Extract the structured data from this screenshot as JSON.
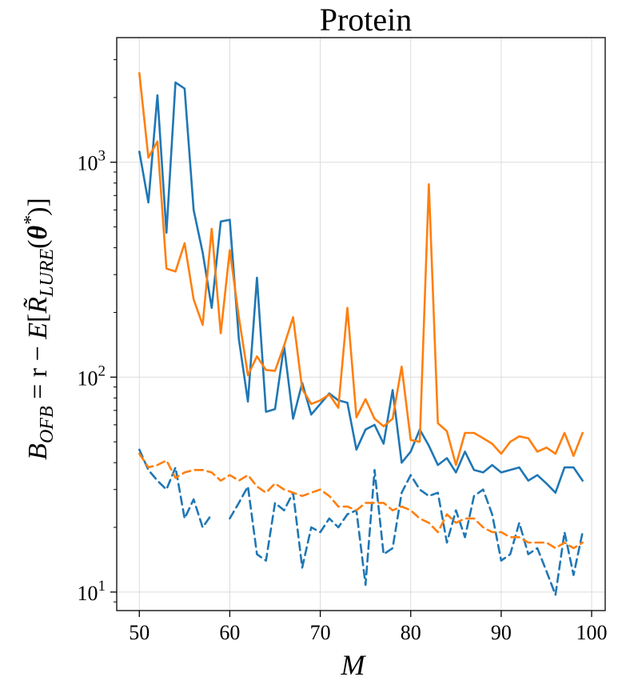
{
  "chart_data": {
    "type": "line",
    "title": "Protein",
    "xlabel": "M",
    "ylabel": "B_OFB = r − E[R̃_LURE(θ*)]",
    "ylabel_parts": {
      "b": "B",
      "b_sub": "OFB",
      "eq": " = r − ",
      "e": "E",
      "lbr": "[",
      "r": "R̃",
      "r_sub": "LURE",
      "lpar": "(",
      "theta": "θ",
      "star": "*",
      "rpar": ")",
      "rbr": "]"
    },
    "yscale": "log",
    "xlim": [
      47.5,
      101.5
    ],
    "ylim": [
      8.2,
      3800
    ],
    "xticks": [
      50,
      60,
      70,
      80,
      90,
      100
    ],
    "xtick_labels": [
      "50",
      "60",
      "70",
      "80",
      "90",
      "100"
    ],
    "yticks": [
      10,
      100,
      1000
    ],
    "ytick_labels": [
      {
        "base": "10",
        "exp": "1"
      },
      {
        "base": "10",
        "exp": "2"
      },
      {
        "base": "10",
        "exp": "3"
      }
    ],
    "grid": true,
    "colors": {
      "blue": "#1f77b4",
      "orange": "#ff7f0e"
    },
    "x": [
      50,
      51,
      52,
      53,
      54,
      55,
      56,
      57,
      58,
      59,
      60,
      61,
      62,
      63,
      64,
      65,
      66,
      67,
      68,
      69,
      70,
      71,
      72,
      73,
      74,
      75,
      76,
      77,
      78,
      79,
      80,
      81,
      82,
      83,
      84,
      85,
      86,
      87,
      88,
      89,
      90,
      91,
      92,
      93,
      94,
      95,
      96,
      97,
      98,
      99
    ],
    "series": [
      {
        "name": "blue solid",
        "color": "#1f77b4",
        "dash": "solid",
        "values": [
          1120,
          650,
          2050,
          470,
          2350,
          2200,
          600,
          380,
          210,
          530,
          540,
          150,
          77,
          290,
          69,
          71,
          140,
          64,
          94,
          67,
          75,
          84,
          78,
          76,
          46,
          57,
          60,
          49,
          87,
          40,
          45,
          57,
          48,
          39,
          42,
          36,
          45,
          37,
          36,
          39,
          36,
          37,
          38,
          33,
          35,
          32,
          29,
          38,
          38,
          33
        ]
      },
      {
        "name": "orange solid",
        "color": "#ff7f0e",
        "dash": "solid",
        "values": [
          2600,
          1050,
          1250,
          320,
          310,
          420,
          230,
          175,
          490,
          160,
          390,
          190,
          102,
          125,
          108,
          107,
          140,
          190,
          88,
          75,
          78,
          83,
          72,
          210,
          65,
          79,
          64,
          59,
          64,
          112,
          51,
          50,
          790,
          61,
          56,
          39,
          55,
          55,
          52,
          49,
          44,
          50,
          53,
          52,
          45,
          47,
          44,
          55,
          43,
          55
        ]
      },
      {
        "name": "blue dashed",
        "color": "#1f77b4",
        "dash": "dashed",
        "values": [
          46,
          37,
          33,
          30,
          38,
          22,
          27,
          20,
          23,
          null,
          22,
          26,
          31,
          15,
          14,
          26,
          24,
          29,
          13,
          20,
          19,
          22,
          20,
          23,
          24,
          10.8,
          37,
          15,
          16,
          29,
          35,
          30,
          28,
          29,
          17,
          24,
          18,
          28,
          30,
          23,
          14,
          15,
          21,
          15,
          16,
          12.5,
          9.7,
          19,
          12,
          19
        ]
      },
      {
        "name": "orange dashed",
        "color": "#ff7f0e",
        "dash": "dashed",
        "values": [
          44,
          38,
          39,
          41,
          34,
          36,
          37,
          37,
          36,
          33,
          35,
          33,
          35,
          31,
          29,
          32,
          30,
          29,
          28,
          29,
          30,
          28,
          25,
          25,
          24,
          26,
          26,
          26,
          24,
          25,
          24,
          22,
          21,
          19,
          23,
          21,
          22,
          22,
          20,
          19,
          19,
          18,
          18,
          17,
          17,
          17,
          16,
          17,
          16,
          17
        ]
      }
    ]
  }
}
